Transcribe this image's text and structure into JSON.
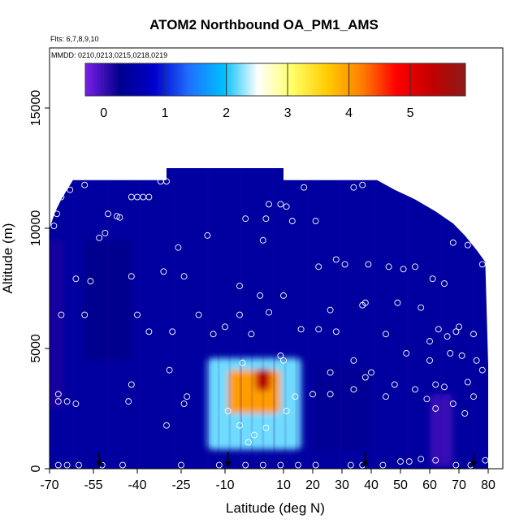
{
  "chart_data": {
    "type": "heatmap",
    "title": "ATOM2 Northbound OA_PM1_AMS",
    "flights_label": "Flts: 6,7,8,9,10",
    "dates_label": "MMDD: 0210,0213,0215,0218,0219",
    "xlabel": "Latitude (deg N)",
    "ylabel": "Altitude (m)",
    "xlim": [
      -70,
      85
    ],
    "ylim": [
      0,
      17500
    ],
    "x_ticks": [
      -70,
      -55,
      -40,
      -25,
      -10,
      10,
      20,
      30,
      40,
      50,
      60,
      70,
      80
    ],
    "x_tick_labels": [
      "-70",
      "-55",
      "-40",
      "-25",
      "-10",
      "10",
      "20",
      "30",
      "40",
      "50",
      "60",
      "70",
      "80"
    ],
    "y_ticks": [
      0,
      5000,
      10000,
      15000
    ],
    "y_tick_labels": [
      "0",
      "5000",
      "10000",
      "15000"
    ],
    "colorbar": {
      "range": [
        -0.3,
        5.9
      ],
      "ticks": [
        0,
        1,
        2,
        3,
        4,
        5
      ],
      "tick_labels": [
        "0",
        "1",
        "2",
        "3",
        "4",
        "5"
      ],
      "colors": [
        "#7a1fe8",
        "#00008c",
        "#0000cc",
        "#1f6fff",
        "#00bfff",
        "#ffffff",
        "#ffff66",
        "#ffcc00",
        "#ff7f00",
        "#ff0000",
        "#c40000",
        "#8c1a1a"
      ]
    },
    "ceiling_profile": [
      [
        -70,
        10000
      ],
      [
        -68,
        10700
      ],
      [
        -66,
        11200
      ],
      [
        -64,
        11600
      ],
      [
        -62,
        12000
      ],
      [
        -30,
        12000
      ],
      [
        -30,
        12500
      ],
      [
        10,
        12500
      ],
      [
        10,
        12000
      ],
      [
        35,
        12000
      ],
      [
        42,
        12000
      ],
      [
        48,
        11600
      ],
      [
        55,
        11200
      ],
      [
        62,
        10700
      ],
      [
        68,
        10200
      ],
      [
        72,
        9700
      ],
      [
        76,
        9100
      ],
      [
        79,
        8600
      ],
      [
        80,
        4300
      ],
      [
        80,
        0
      ]
    ],
    "plumes": [
      {
        "x": 0,
        "y": 2700,
        "w": 32,
        "h": 3800,
        "value": 2.2
      },
      {
        "x": 0,
        "y": 3200,
        "w": 18,
        "h": 1800,
        "value": 4.0
      },
      {
        "x": 3,
        "y": 3700,
        "w": 5,
        "h": 900,
        "value": 5.4
      },
      {
        "x": 30,
        "y": 2500,
        "w": 20,
        "h": 3500,
        "value": 0.35
      },
      {
        "x": 64,
        "y": 1600,
        "w": 8,
        "h": 3000,
        "value": 0.0
      },
      {
        "x": -50,
        "y": 7000,
        "w": 16,
        "h": 5000,
        "value": 0.25
      },
      {
        "x": -68,
        "y": 6000,
        "w": 6,
        "h": 7000,
        "value": 0.15
      }
    ],
    "background_value": 0.45,
    "obs_points": [
      [
        -68.5,
        10100
      ],
      [
        -67.5,
        10600
      ],
      [
        -66,
        11300
      ],
      [
        -63,
        11600
      ],
      [
        -58,
        11800
      ],
      [
        -32,
        11950
      ],
      [
        -30,
        11950
      ],
      [
        -36,
        11300
      ],
      [
        -38,
        11300
      ],
      [
        -40,
        11300
      ],
      [
        -42,
        11300
      ],
      [
        -46,
        10450
      ],
      [
        -47,
        10500
      ],
      [
        -50,
        10600
      ],
      [
        -53,
        9600
      ],
      [
        -51,
        9800
      ],
      [
        -61,
        7900
      ],
      [
        -56,
        7800
      ],
      [
        -42,
        8000
      ],
      [
        -31,
        8200
      ],
      [
        -26,
        9200
      ],
      [
        -24,
        8000
      ],
      [
        -16,
        9700
      ],
      [
        -5,
        7600
      ],
      [
        2,
        7200
      ],
      [
        3,
        9500
      ],
      [
        4,
        10400
      ],
      [
        -3,
        10400
      ],
      [
        5,
        11000
      ],
      [
        9,
        11000
      ],
      [
        11,
        10900
      ],
      [
        13,
        10300
      ],
      [
        17,
        11700
      ],
      [
        21,
        10300
      ],
      [
        22,
        8400
      ],
      [
        28,
        8700
      ],
      [
        31,
        8500
      ],
      [
        34,
        11700
      ],
      [
        37,
        11800
      ],
      [
        39,
        8500
      ],
      [
        46,
        8400
      ],
      [
        51,
        8300
      ],
      [
        55,
        8400
      ],
      [
        61,
        7900
      ],
      [
        65,
        7700
      ],
      [
        68,
        9400
      ],
      [
        73,
        9300
      ],
      [
        78,
        8500
      ],
      [
        57,
        6700
      ],
      [
        49,
        6900
      ],
      [
        38,
        6900
      ],
      [
        37,
        6800
      ],
      [
        26,
        6600
      ],
      [
        16,
        5800
      ],
      [
        10,
        7200
      ],
      [
        5,
        6500
      ],
      [
        -5,
        6400
      ],
      [
        -19,
        6400
      ],
      [
        -40,
        6400
      ],
      [
        -58,
        6400
      ],
      [
        -66,
        6400
      ],
      [
        -36,
        5700
      ],
      [
        -28,
        5700
      ],
      [
        -14,
        5600
      ],
      [
        -10,
        5900
      ],
      [
        -4,
        4400
      ],
      [
        -1,
        5600
      ],
      [
        9,
        4700
      ],
      [
        10,
        4500
      ],
      [
        22,
        5800
      ],
      [
        28,
        5700
      ],
      [
        34,
        4500
      ],
      [
        40,
        4000
      ],
      [
        38,
        3800
      ],
      [
        34,
        3300
      ],
      [
        26,
        4000
      ],
      [
        26,
        3100
      ],
      [
        20,
        3100
      ],
      [
        14,
        3000
      ],
      [
        11,
        2400
      ],
      [
        45,
        3000
      ],
      [
        48,
        3500
      ],
      [
        55,
        3300
      ],
      [
        59,
        2900
      ],
      [
        62,
        3500
      ],
      [
        65,
        3400
      ],
      [
        69,
        5700
      ],
      [
        71,
        4700
      ],
      [
        73,
        3600
      ],
      [
        76,
        4500
      ],
      [
        78,
        4100
      ],
      [
        75,
        5600
      ],
      [
        70,
        5900
      ],
      [
        63,
        5800
      ],
      [
        66,
        5500
      ],
      [
        67,
        4800
      ],
      [
        60,
        4500
      ],
      [
        60,
        5300
      ],
      [
        52,
        4800
      ],
      [
        45,
        5600
      ],
      [
        75,
        3000
      ],
      [
        72,
        2300
      ],
      [
        68,
        2700
      ],
      [
        62,
        2500
      ],
      [
        -42,
        3500
      ],
      [
        -43,
        2800
      ],
      [
        -24,
        2700
      ],
      [
        -23,
        3000
      ],
      [
        -30,
        1800
      ],
      [
        -29,
        4100
      ],
      [
        -9,
        2400
      ],
      [
        -5,
        1800
      ],
      [
        -2,
        1100
      ],
      [
        0,
        1400
      ],
      [
        4,
        1700
      ],
      [
        -67,
        3100
      ],
      [
        -64,
        2800
      ],
      [
        -61,
        2700
      ],
      [
        -67,
        2800
      ],
      [
        -67,
        150
      ],
      [
        -64,
        150
      ],
      [
        -60,
        150
      ],
      [
        -52,
        150
      ],
      [
        -45,
        150
      ],
      [
        -25,
        150
      ],
      [
        -12,
        150
      ],
      [
        -3,
        150
      ],
      [
        3,
        150
      ],
      [
        9,
        150
      ],
      [
        15,
        150
      ],
      [
        21,
        150
      ],
      [
        33,
        150
      ],
      [
        37,
        150
      ],
      [
        44,
        150
      ],
      [
        50,
        300
      ],
      [
        53,
        300
      ],
      [
        57,
        400
      ],
      [
        62,
        350
      ],
      [
        69,
        150
      ],
      [
        74,
        150
      ],
      [
        79,
        350
      ]
    ],
    "flight_markers_x": [
      -53,
      -9,
      38,
      75
    ],
    "grid": false,
    "legend_position": "top"
  }
}
